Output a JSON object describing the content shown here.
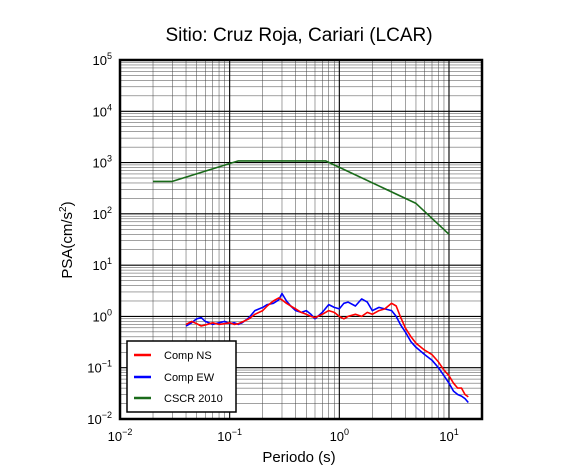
{
  "chart_data": {
    "type": "line",
    "title": "Sitio: Cruz Roja, Cariari (LCAR)",
    "xlabel": "Periodo (s)",
    "ylabel_main": "PSA(cm/s",
    "ylabel_sup": "2",
    "ylabel_close": ")",
    "x_scale": "log",
    "y_scale": "log",
    "xlim": [
      0.01,
      20
    ],
    "ylim": [
      0.01,
      100000
    ],
    "grid": true,
    "legend_placement": "bottom-left",
    "x_ticks": [
      {
        "value": 0.01,
        "base": "10",
        "exp": "−2"
      },
      {
        "value": 0.1,
        "base": "10",
        "exp": "−1"
      },
      {
        "value": 1,
        "base": "10",
        "exp": "0"
      },
      {
        "value": 10,
        "base": "10",
        "exp": "1"
      }
    ],
    "y_ticks": [
      {
        "value": 0.01,
        "base": "10",
        "exp": "−2"
      },
      {
        "value": 0.1,
        "base": "10",
        "exp": "−1"
      },
      {
        "value": 1,
        "base": "10",
        "exp": "0"
      },
      {
        "value": 10,
        "base": "10",
        "exp": "1"
      },
      {
        "value": 100,
        "base": "10",
        "exp": "2"
      },
      {
        "value": 1000,
        "base": "10",
        "exp": "3"
      },
      {
        "value": 10000,
        "base": "10",
        "exp": "4"
      },
      {
        "value": 100000,
        "base": "10",
        "exp": "5"
      }
    ],
    "series": [
      {
        "name": "Comp NS",
        "color": "#ff0000",
        "x": [
          0.04,
          0.045,
          0.05,
          0.055,
          0.06,
          0.07,
          0.08,
          0.09,
          0.1,
          0.11,
          0.12,
          0.13,
          0.15,
          0.17,
          0.2,
          0.22,
          0.25,
          0.28,
          0.3,
          0.33,
          0.36,
          0.4,
          0.45,
          0.5,
          0.55,
          0.6,
          0.7,
          0.8,
          0.9,
          1.0,
          1.1,
          1.2,
          1.4,
          1.6,
          1.8,
          2.0,
          2.3,
          2.6,
          3.0,
          3.3,
          3.6,
          4.0,
          4.5,
          5.0,
          6.0,
          7.0,
          8.0,
          9.0,
          10.0,
          11.0,
          12.0,
          13.0,
          14.0,
          15.0
        ],
        "y": [
          0.7,
          0.8,
          0.72,
          0.65,
          0.68,
          0.75,
          0.7,
          0.72,
          0.75,
          0.7,
          0.72,
          0.78,
          0.9,
          1.1,
          1.3,
          1.6,
          2.0,
          2.3,
          2.1,
          1.8,
          1.6,
          1.4,
          1.2,
          1.1,
          1.0,
          0.95,
          1.1,
          1.3,
          1.2,
          1.0,
          0.9,
          1.0,
          1.1,
          1.0,
          1.2,
          1.1,
          1.3,
          1.4,
          1.8,
          1.6,
          1.0,
          0.6,
          0.4,
          0.3,
          0.22,
          0.18,
          0.13,
          0.09,
          0.07,
          0.05,
          0.04,
          0.04,
          0.03,
          0.027
        ]
      },
      {
        "name": "Comp EW",
        "color": "#0000ff",
        "x": [
          0.04,
          0.045,
          0.05,
          0.055,
          0.06,
          0.07,
          0.08,
          0.09,
          0.1,
          0.11,
          0.12,
          0.13,
          0.15,
          0.17,
          0.2,
          0.22,
          0.25,
          0.28,
          0.3,
          0.33,
          0.36,
          0.4,
          0.45,
          0.5,
          0.55,
          0.6,
          0.7,
          0.8,
          0.9,
          1.0,
          1.1,
          1.2,
          1.4,
          1.6,
          1.8,
          2.0,
          2.3,
          2.6,
          3.0,
          3.3,
          3.6,
          4.0,
          4.5,
          5.0,
          6.0,
          7.0,
          8.0,
          9.0,
          10.0,
          11.0,
          12.0,
          13.0,
          14.0,
          15.0
        ],
        "y": [
          0.65,
          0.75,
          0.9,
          0.95,
          0.8,
          0.7,
          0.75,
          0.8,
          0.72,
          0.75,
          0.7,
          0.75,
          0.95,
          1.3,
          1.5,
          1.7,
          1.8,
          2.1,
          2.8,
          2.0,
          1.6,
          1.3,
          1.2,
          1.3,
          1.1,
          0.9,
          1.2,
          1.7,
          1.5,
          1.4,
          1.8,
          1.9,
          1.6,
          2.2,
          1.9,
          1.3,
          1.5,
          1.4,
          1.3,
          1.0,
          0.7,
          0.5,
          0.32,
          0.25,
          0.18,
          0.14,
          0.1,
          0.07,
          0.05,
          0.035,
          0.03,
          0.028,
          0.025,
          0.021
        ]
      },
      {
        "name": "CSCR 2010",
        "color": "#1a6b1a",
        "x": [
          0.02,
          0.03,
          0.12,
          0.75,
          5.0,
          10.0
        ],
        "y": [
          430,
          430,
          1080,
          1080,
          160,
          40
        ]
      }
    ]
  }
}
